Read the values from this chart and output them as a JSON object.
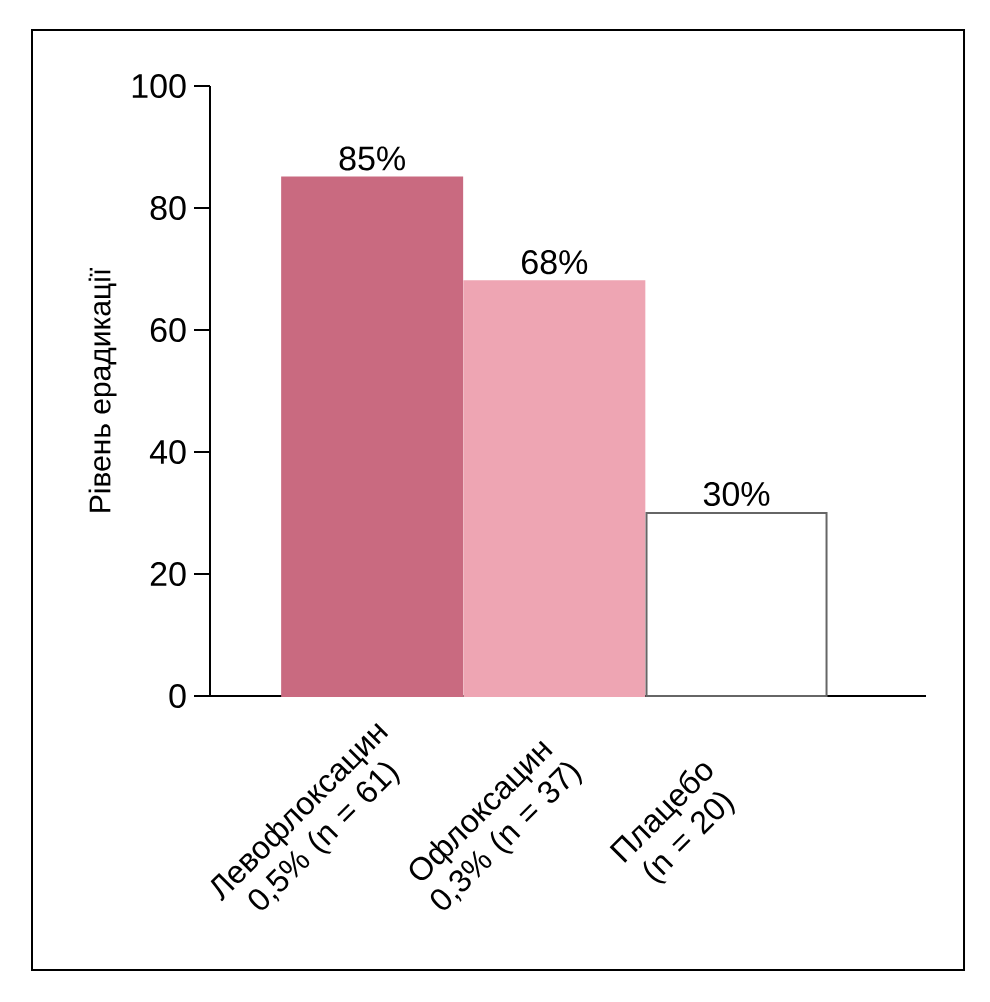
{
  "chart_data": {
    "type": "bar",
    "ylabel": "Рівень ерадикації",
    "categories": [
      "Левофлоксацин 0,5% (n = 61)",
      "Офлоксацин 0,3% (n = 37)",
      "Плацебо (n = 20)"
    ],
    "values": [
      85,
      68,
      30
    ],
    "colors": [
      "#c96a80",
      "#eea5b3",
      "#ffffff"
    ],
    "value_labels": [
      "85%",
      "68%",
      "30%"
    ],
    "ylim": [
      0,
      100
    ],
    "yticks": [
      0,
      20,
      40,
      60,
      80,
      100
    ],
    "grid": false
  }
}
